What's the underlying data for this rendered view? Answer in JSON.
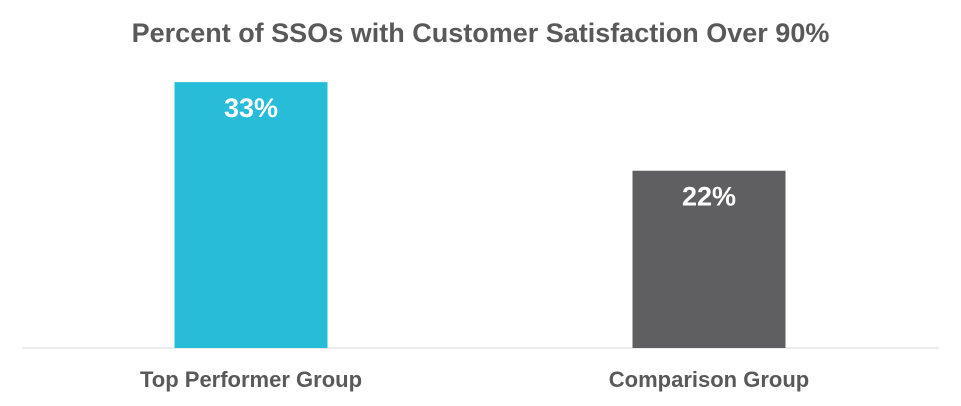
{
  "chart_data": {
    "type": "bar",
    "title": "Percent of SSOs with Customer Satisfaction Over 90%",
    "categories": [
      "Top Performer Group",
      "Comparison Group"
    ],
    "values": [
      33,
      22
    ],
    "value_labels": [
      "33%",
      "22%"
    ],
    "colors": [
      "#27bcd8",
      "#5f5f61"
    ],
    "ylim": [
      0,
      35
    ],
    "grid": false,
    "legend": "none"
  }
}
